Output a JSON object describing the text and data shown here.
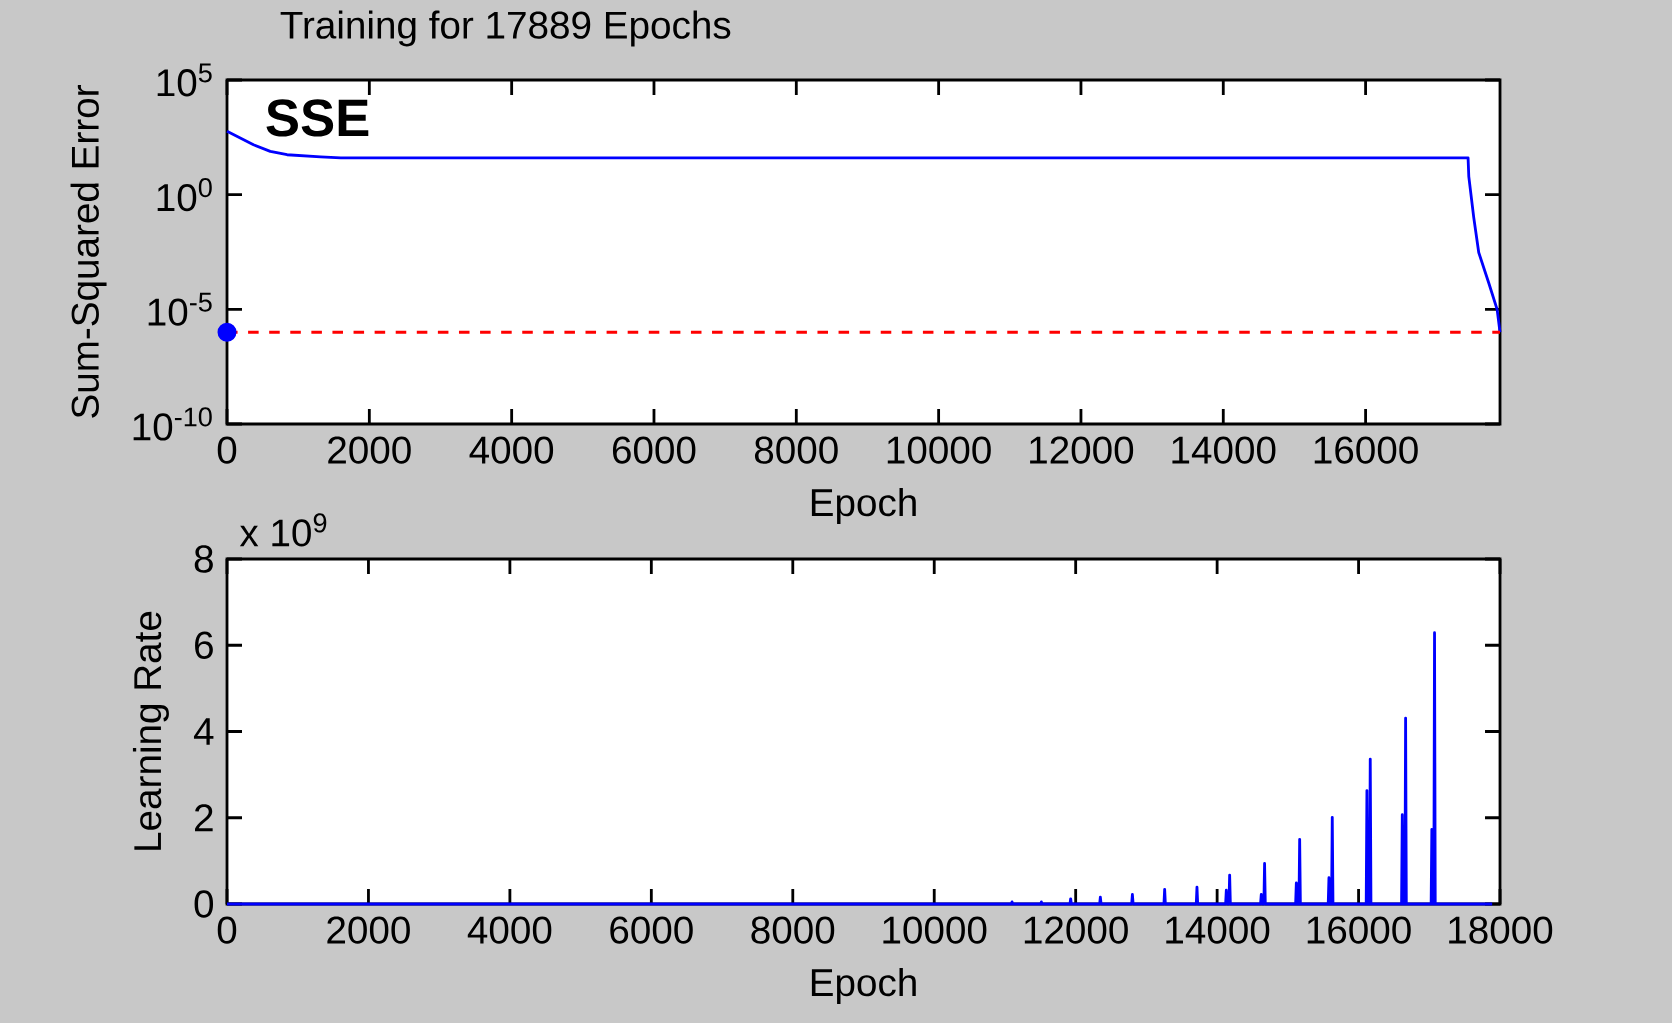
{
  "chart_data": [
    {
      "type": "line",
      "title": "Training for 17889 Epochs",
      "xlabel": "Epoch",
      "ylabel": "Sum-Squared Error",
      "log": "y",
      "xlim": [
        0,
        17889
      ],
      "xticks": [
        0,
        2000,
        4000,
        6000,
        8000,
        10000,
        12000,
        14000,
        16000
      ],
      "ylim": [
        1e-10,
        100000
      ],
      "yticks": [
        {
          "value": 1e-10,
          "label": "10$^{-10}$"
        },
        {
          "value": 1e-05,
          "label": "10$^{-5}$"
        },
        {
          "value": 1,
          "label": "10$^{0}$"
        },
        {
          "value": 100000,
          "label": "10$^{5}$"
        }
      ],
      "annotations": [
        "SSE"
      ],
      "ref_lines": [
        {
          "axis": "y",
          "value": 1e-06,
          "color": "#ff0000",
          "line_style": "dashed"
        }
      ],
      "series": [
        {
          "color": "#0000ff",
          "x": [
            0,
            372,
            608,
            844,
            1315,
            1600,
            17440,
            17450,
            17520,
            17590,
            17731,
            17848,
            17889
          ],
          "values": [
            575,
            150,
            77,
            55,
            44,
            40,
            40,
            6.3,
            0.1,
            0.003,
            0.00014,
            1e-05,
            1e-06
          ]
        },
        {
          "type": "scatter",
          "color": "#0000ff",
          "x": [
            0
          ],
          "values": [
            1e-06
          ]
        }
      ]
    },
    {
      "type": "line",
      "xlabel": "Epoch",
      "ylabel": "Learning Rate",
      "xlim": [
        0,
        18000
      ],
      "xticks": [
        0,
        2000,
        4000,
        6000,
        8000,
        10000,
        12000,
        14000,
        16000,
        18000
      ],
      "ylim": [
        0,
        8
      ],
      "yticks": [
        0,
        2,
        4,
        6,
        8
      ],
      "annotations": [
        "x 10$^{9}$"
      ],
      "series": [
        {
          "color": "#0000ff",
          "x": [
            0,
            11090,
            11100,
            11110,
            11505,
            11515,
            11525,
            11919,
            11929,
            11939,
            12339,
            12349,
            12359,
            12792,
            12802,
            12812,
            13248,
            13258,
            13268,
            13705,
            13715,
            13725,
            14120,
            14130,
            14140,
            14167,
            14177,
            14187,
            14614,
            14624,
            14634,
            14661,
            14671,
            14681,
            15110,
            15120,
            15130,
            15157,
            15167,
            15177,
            15571,
            15581,
            15591,
            15618,
            15628,
            15638,
            16108,
            16118,
            16128,
            16155,
            16165,
            16175,
            16608,
            16618,
            16628,
            16655,
            16665,
            16675,
            17026,
            17036,
            17046,
            17064,
            17074,
            17084,
            17889
          ],
          "values": [
            0,
            0,
            0.05,
            0,
            0,
            0.05,
            0,
            0,
            0.12,
            0,
            0,
            0.16,
            0,
            0,
            0.22,
            0,
            0,
            0.34,
            0,
            0,
            0.39,
            0,
            0,
            0.32,
            0,
            0,
            0.67,
            0,
            0,
            0.22,
            0,
            0,
            0.94,
            0,
            0,
            0.49,
            0,
            0,
            1.5,
            0,
            0,
            0.61,
            0,
            0,
            2.01,
            0,
            0,
            2.63,
            0,
            0,
            3.36,
            0,
            0,
            2.07,
            0,
            0,
            4.31,
            0,
            0,
            1.73,
            0,
            0,
            6.29,
            0,
            0
          ]
        }
      ]
    }
  ]
}
